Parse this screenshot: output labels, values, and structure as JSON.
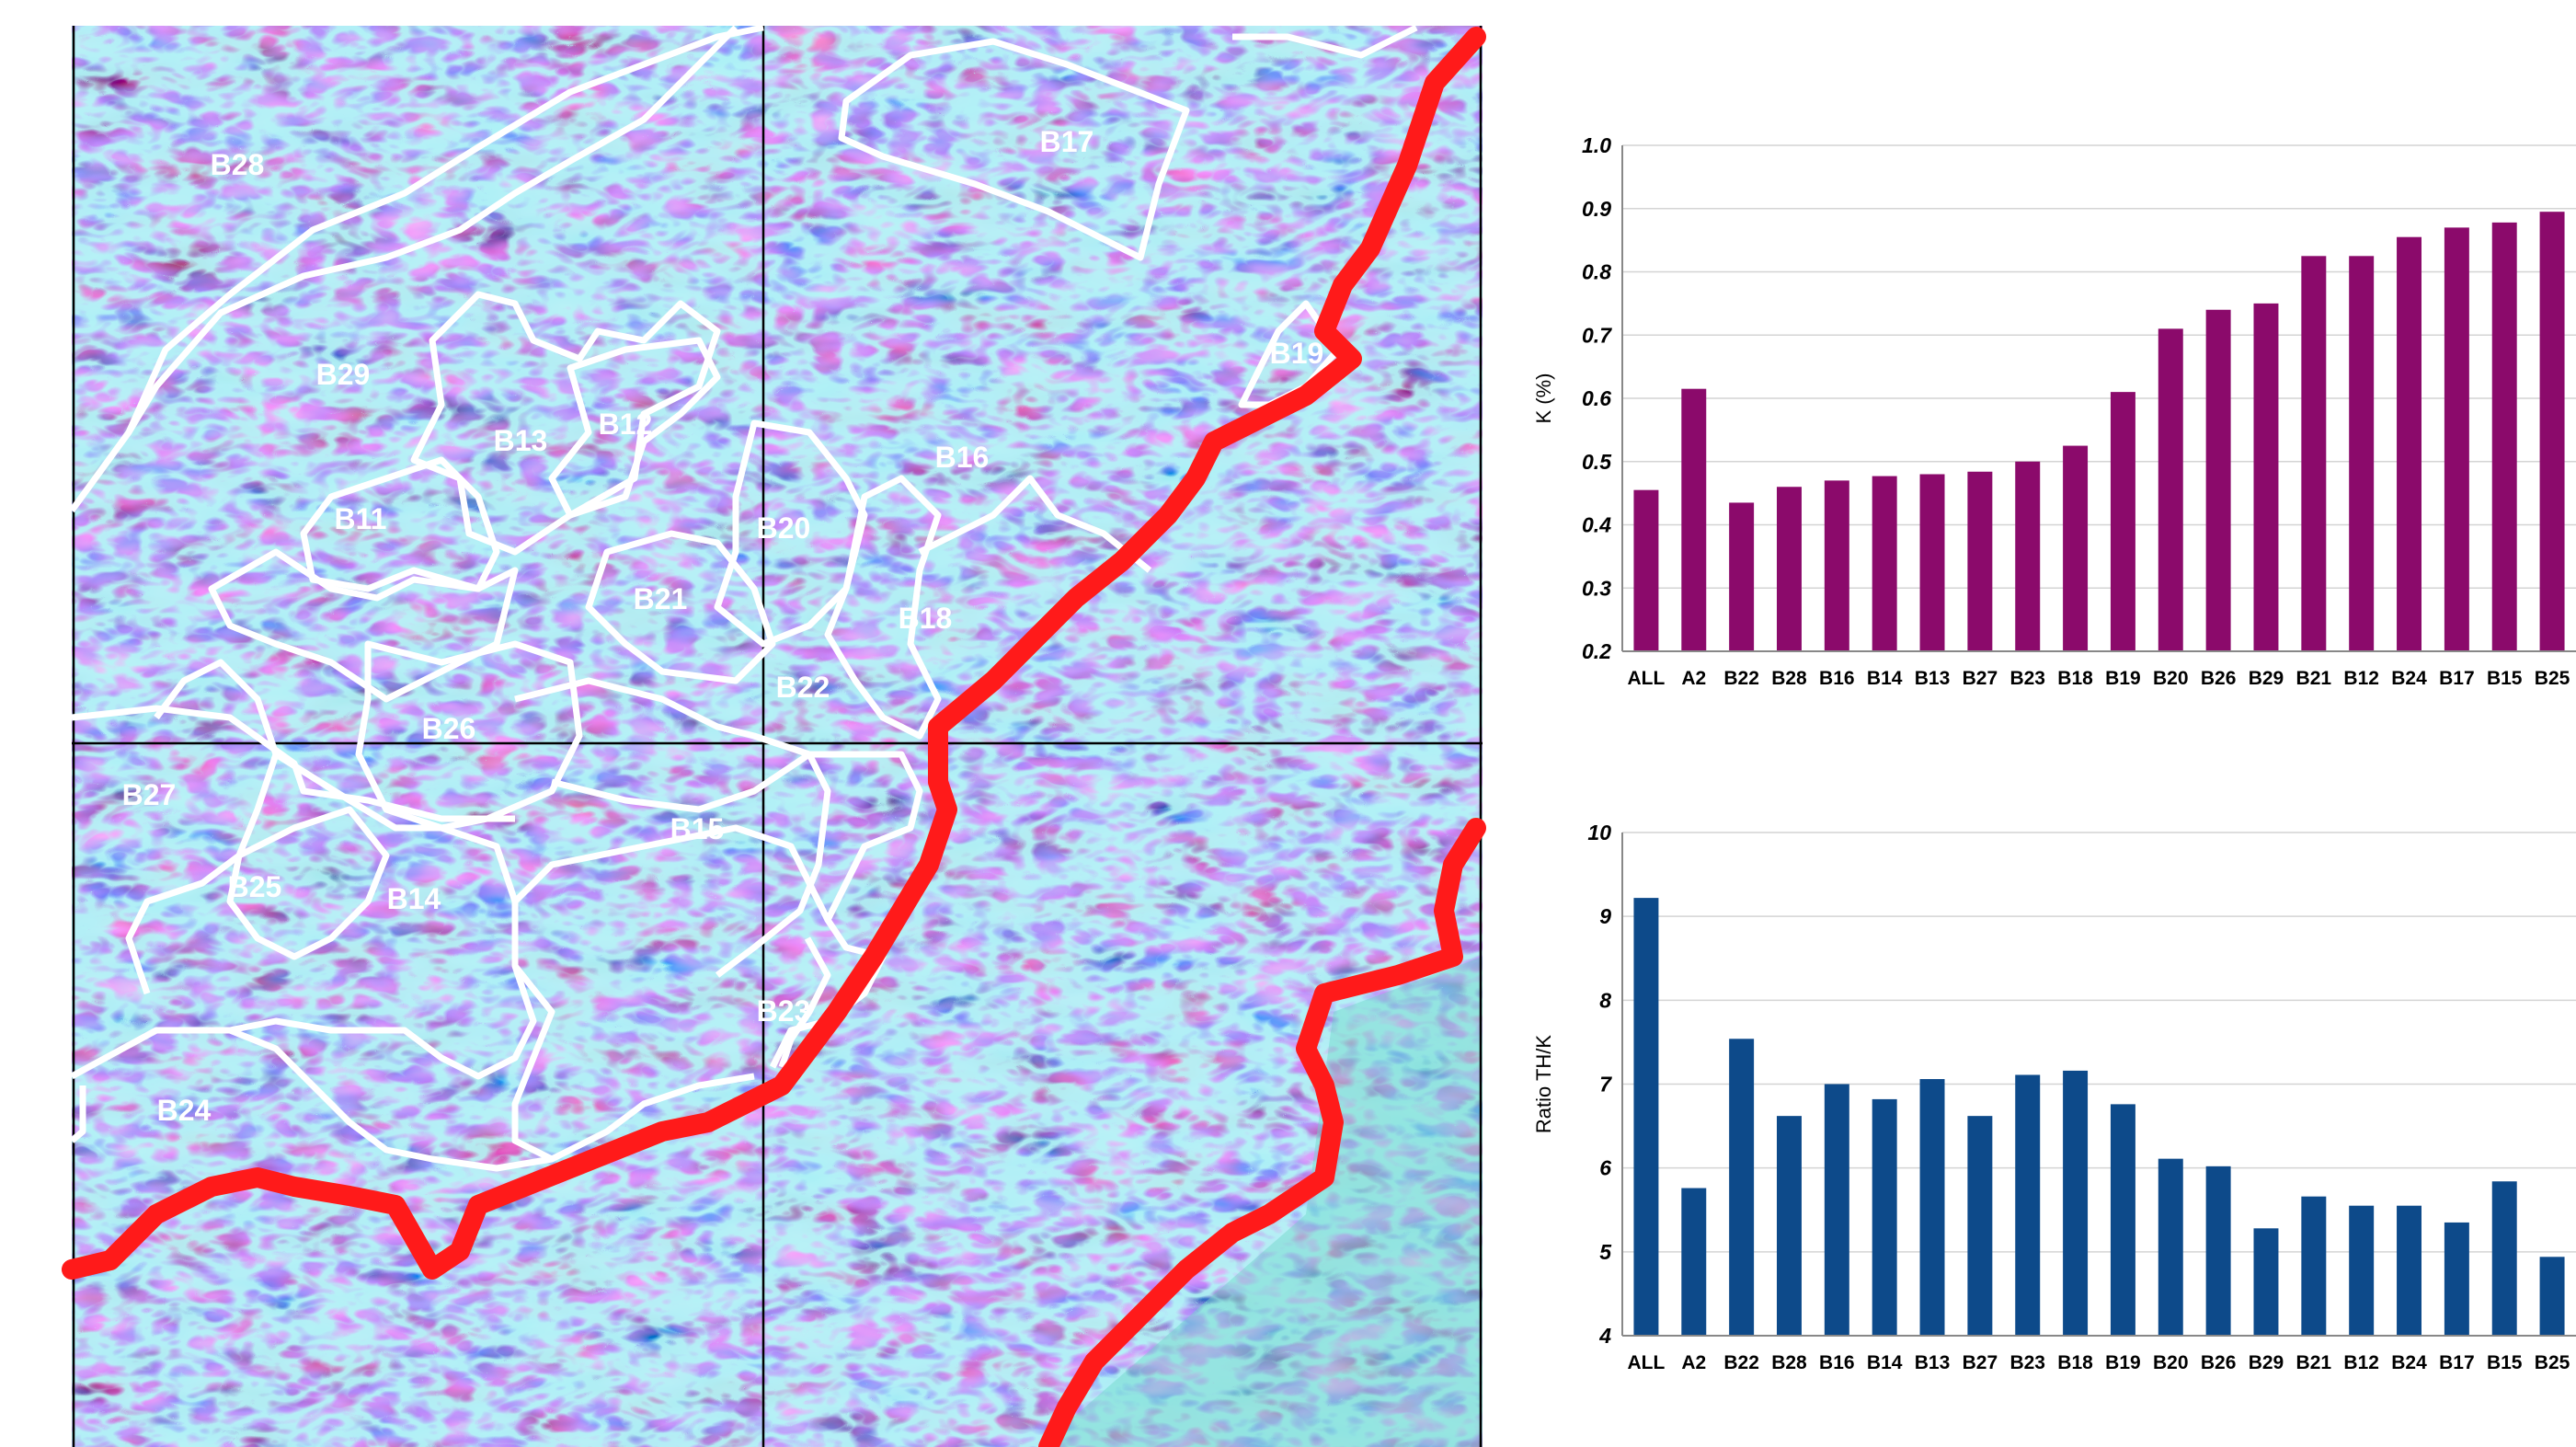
{
  "map": {
    "block_labels": [
      "B28",
      "B17",
      "B29",
      "B19",
      "B13",
      "B12",
      "B16",
      "B11",
      "B20",
      "B21",
      "B18",
      "B22",
      "B26",
      "B27",
      "B15",
      "B25",
      "B14",
      "B23",
      "B24"
    ]
  },
  "colors": {
    "k_bars": "#8b0a6b",
    "ratio_bars": "#0d4a8a",
    "boundary_red": "#ff1a1a",
    "boundary_white": "#ffffff"
  },
  "chart_data": [
    {
      "type": "bar",
      "title": "",
      "xlabel": "",
      "ylabel": "K (%)",
      "ylim": [
        0.2,
        1.0
      ],
      "yticks": [
        "0.2",
        "0.3",
        "0.4",
        "0.5",
        "0.6",
        "0.7",
        "0.8",
        "0.9",
        "1.0"
      ],
      "grid": true,
      "categories": [
        "ALL",
        "A2",
        "B22",
        "B28",
        "B16",
        "B14",
        "B13",
        "B27",
        "B23",
        "B18",
        "B19",
        "B20",
        "B26",
        "B29",
        "B21",
        "B12",
        "B24",
        "B17",
        "B15",
        "B25"
      ],
      "values": [
        0.455,
        0.615,
        0.435,
        0.46,
        0.47,
        0.477,
        0.48,
        0.484,
        0.5,
        0.525,
        0.61,
        0.71,
        0.74,
        0.75,
        0.825,
        0.825,
        0.855,
        0.87,
        0.878,
        0.895
      ]
    },
    {
      "type": "bar",
      "title": "",
      "xlabel": "",
      "ylabel": "Ratio TH/K",
      "ylim": [
        4,
        10
      ],
      "yticks": [
        "4",
        "5",
        "6",
        "7",
        "8",
        "9",
        "10"
      ],
      "grid": true,
      "categories": [
        "ALL",
        "A2",
        "B22",
        "B28",
        "B16",
        "B14",
        "B13",
        "B27",
        "B23",
        "B18",
        "B19",
        "B20",
        "B26",
        "B29",
        "B21",
        "B12",
        "B24",
        "B17",
        "B15",
        "B25"
      ],
      "values": [
        9.22,
        5.76,
        7.54,
        6.62,
        7.0,
        6.82,
        7.06,
        6.62,
        7.11,
        7.16,
        6.76,
        6.11,
        6.02,
        5.28,
        5.66,
        5.55,
        5.55,
        5.35,
        5.84,
        4.94
      ]
    }
  ]
}
